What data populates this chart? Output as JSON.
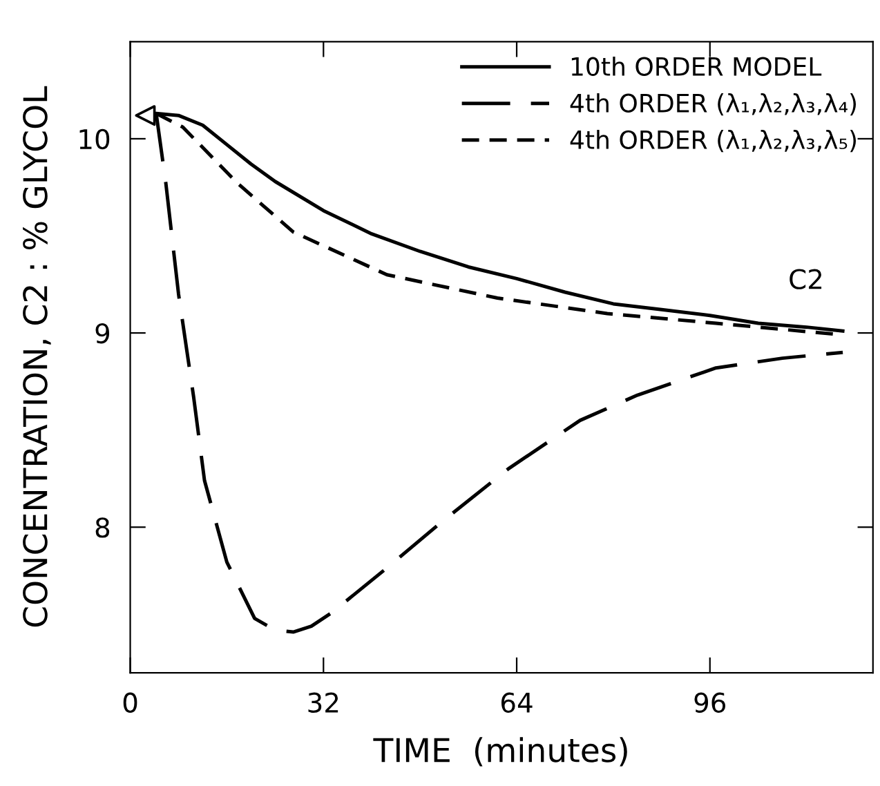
{
  "chart_data": {
    "type": "line",
    "xlabel": "TIME  (minutes)",
    "ylabel": "CONCENTRATION, C2 : % GLYCOL",
    "xlim": [
      0,
      123
    ],
    "xticks": [
      0,
      32,
      64,
      96
    ],
    "ylim": [
      7.25,
      10.5
    ],
    "yticks": [
      8,
      9,
      10
    ],
    "grid": false,
    "legend": "top right",
    "annotations": [
      "C2"
    ],
    "series": [
      {
        "name": "10th ORDER MODEL",
        "color": "#000000",
        "line_style": "solid",
        "x": [
          4.3,
          8,
          12,
          16,
          20,
          24,
          32,
          40,
          48,
          56,
          64,
          72,
          80,
          88,
          96,
          104,
          112,
          118
        ],
        "values": [
          10.13,
          10.12,
          10.07,
          9.97,
          9.87,
          9.78,
          9.63,
          9.51,
          9.42,
          9.34,
          9.28,
          9.21,
          9.15,
          9.12,
          9.09,
          9.05,
          9.03,
          9.01
        ]
      },
      {
        "name": "4th ORDER (λ₁,λ₂,λ₃,λ₄)",
        "color": "#000000",
        "line_style": "dashed",
        "x": [
          4.3,
          5.9,
          8,
          10.5,
          12.3,
          16,
          20.6,
          24,
          27,
          30,
          33.4,
          42.5,
          51.7,
          62.6,
          74.5,
          84,
          97,
          108,
          118
        ],
        "values": [
          10.13,
          9.77,
          9.2,
          8.67,
          8.24,
          7.82,
          7.53,
          7.47,
          7.46,
          7.49,
          7.56,
          7.79,
          8.03,
          8.3,
          8.55,
          8.68,
          8.82,
          8.87,
          8.9
        ]
      },
      {
        "name": "4th ORDER (λ₁,λ₂,λ₃,λ₅)",
        "color": "#000000",
        "line_style": "dotted",
        "x": [
          4.3,
          8.7,
          17.8,
          27,
          42.5,
          60.8,
          79,
          97,
          118
        ],
        "values": [
          10.13,
          10.06,
          9.77,
          9.52,
          9.3,
          9.18,
          9.1,
          9.05,
          8.99
        ]
      },
      {
        "type": "scatter",
        "marker": "triangle",
        "color": "#000000",
        "x": [
          2.5
        ],
        "values": [
          10.12
        ]
      }
    ]
  }
}
